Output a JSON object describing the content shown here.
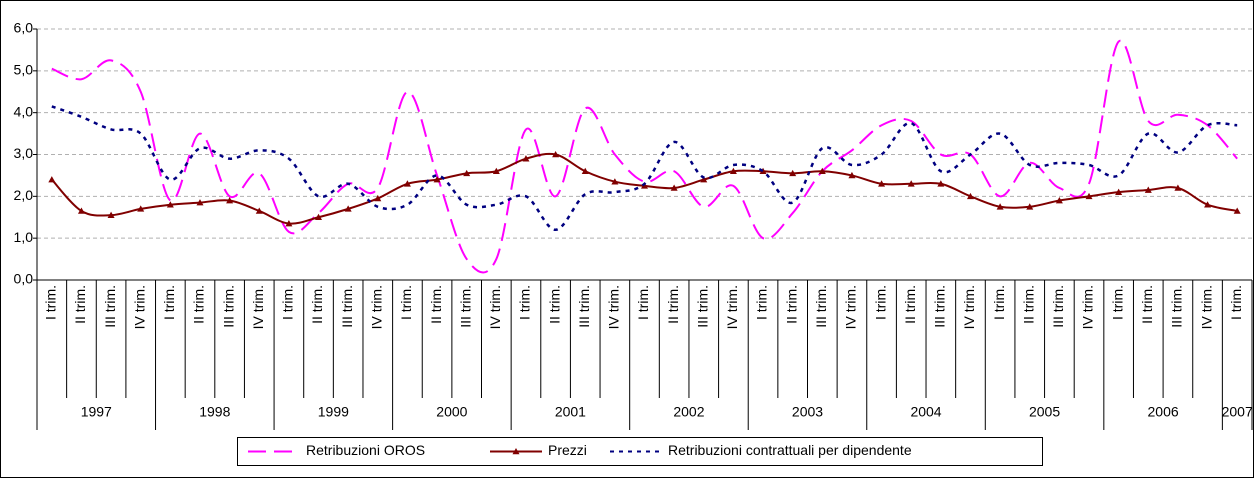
{
  "chart_data": {
    "type": "line",
    "categories": [
      "I trim.",
      "II trim.",
      "III trim.",
      "IV trim.",
      "I trim.",
      "II trim.",
      "III trim.",
      "IV trim.",
      "I trim.",
      "II trim.",
      "III trim.",
      "IV trim.",
      "I trim.",
      "II trim.",
      "III trim.",
      "IV trim.",
      "I trim.",
      "II trim.",
      "III trim.",
      "IV trim.",
      "I trim.",
      "II trim.",
      "III trim.",
      "IV trim.",
      "I trim.",
      "II trim.",
      "III trim.",
      "IV trim.",
      "I trim.",
      "II trim.",
      "III trim.",
      "IV trim.",
      "I trim.",
      "II trim.",
      "III trim.",
      "IV trim.",
      "I trim.",
      "II trim.",
      "III trim.",
      "IV trim.",
      "I trim."
    ],
    "years": [
      "1997",
      "1998",
      "1999",
      "2000",
      "2001",
      "2002",
      "2003",
      "2004",
      "2005",
      "2006",
      "2007"
    ],
    "series": [
      {
        "name": "Retribuzioni OROS",
        "color": "#ff00ff",
        "style": "dashed",
        "values": [
          5.05,
          4.8,
          5.25,
          4.5,
          1.9,
          3.5,
          2.0,
          2.55,
          1.15,
          1.6,
          2.3,
          2.2,
          4.5,
          2.5,
          0.5,
          0.5,
          3.6,
          2.0,
          4.1,
          3.0,
          2.35,
          2.6,
          1.75,
          2.25,
          1.0,
          1.6,
          2.6,
          3.1,
          3.7,
          3.8,
          3.0,
          3.0,
          2.0,
          2.8,
          2.2,
          2.3,
          5.7,
          3.8,
          3.95,
          3.7,
          2.9
        ]
      },
      {
        "name": "Prezzi",
        "color": "#800000",
        "style": "solid",
        "marker": "triangle",
        "values": [
          2.4,
          1.65,
          1.55,
          1.7,
          1.8,
          1.85,
          1.9,
          1.65,
          1.35,
          1.5,
          1.7,
          1.95,
          2.3,
          2.4,
          2.55,
          2.6,
          2.9,
          3.0,
          2.6,
          2.35,
          2.25,
          2.2,
          2.4,
          2.6,
          2.6,
          2.55,
          2.6,
          2.5,
          2.3,
          2.3,
          2.3,
          2.0,
          1.75,
          1.75,
          1.9,
          2.0,
          2.1,
          2.15,
          2.2,
          1.8,
          1.65
        ]
      },
      {
        "name": "Retribuzioni contrattuali per dipendente",
        "color": "#000080",
        "style": "dotted",
        "values": [
          4.15,
          3.9,
          3.6,
          3.5,
          2.4,
          3.15,
          2.9,
          3.1,
          2.9,
          2.0,
          2.3,
          1.75,
          1.8,
          2.5,
          1.8,
          1.8,
          2.0,
          1.2,
          2.05,
          2.1,
          2.3,
          3.3,
          2.45,
          2.75,
          2.6,
          1.85,
          3.15,
          2.75,
          3.0,
          3.75,
          2.6,
          3.0,
          3.5,
          2.75,
          2.8,
          2.75,
          2.5,
          3.5,
          3.05,
          3.7,
          3.7
        ]
      }
    ],
    "ylim": [
      0,
      6
    ],
    "yticks": [
      {
        "value": 0,
        "label": "0,0"
      },
      {
        "value": 1,
        "label": "1,0"
      },
      {
        "value": 2,
        "label": "2,0"
      },
      {
        "value": 3,
        "label": "3,0"
      },
      {
        "value": 4,
        "label": "4,0"
      },
      {
        "value": 5,
        "label": "5,0"
      },
      {
        "value": 6,
        "label": "6,0"
      }
    ],
    "grid": true,
    "legend": "bottom",
    "smooth": true
  }
}
